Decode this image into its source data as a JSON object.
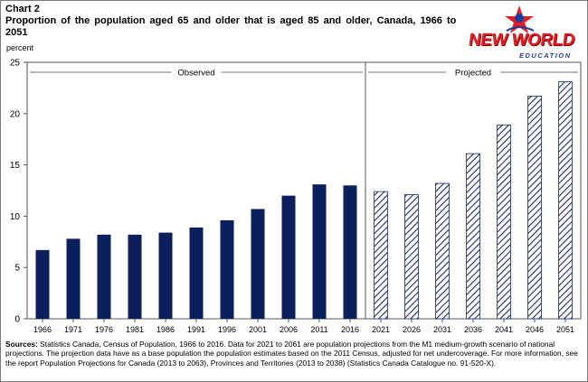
{
  "chart_label": "Chart 2",
  "title": "Proportion of the population aged 65 and older that is aged 85 and older, Canada, 1966 to 2051",
  "logo": {
    "main": "NEW WORLD",
    "sub": "EDUCATION"
  },
  "source": {
    "label": "Sources:",
    "text": " Statistics Canada, Census of Population, 1966 to 2016. Data for 2021 to 2061 are population projections from the M1 medium-growth scenario of national projections. The projection data have as a base population the population estimates based on the 2011 Census, adjusted for net undercoverage. For more information, see the report Population Projections for Canada (2013 to 2063), Provinces and Territories (2013 to 2038) (Statistics Canada Catalogue no. 91-520-X)."
  },
  "colors": {
    "observed": "#0b1f5c",
    "projected_stroke": "#1b2a6b",
    "axis": "#555555"
  },
  "chart_data": {
    "type": "bar",
    "title": "Proportion of the population aged 65 and older that is aged 85 and older, Canada, 1966 to 2051",
    "ylabel": "percent",
    "xlabel": "",
    "ylim": [
      0,
      25
    ],
    "yticks": [
      0,
      5,
      10,
      15,
      20,
      25
    ],
    "grid": false,
    "categories": [
      "1966",
      "1971",
      "1976",
      "1981",
      "1986",
      "1991",
      "1996",
      "2001",
      "2006",
      "2011",
      "2016",
      "2021",
      "2026",
      "2031",
      "2036",
      "2041",
      "2046",
      "2051"
    ],
    "series": [
      {
        "name": "Observed",
        "style": "solid",
        "values": [
          6.7,
          7.8,
          8.2,
          8.2,
          8.4,
          8.9,
          9.6,
          10.7,
          12.0,
          13.1,
          13.0,
          null,
          null,
          null,
          null,
          null,
          null,
          null
        ]
      },
      {
        "name": "Projected",
        "style": "hatched",
        "values": [
          null,
          null,
          null,
          null,
          null,
          null,
          null,
          null,
          null,
          null,
          null,
          12.4,
          12.1,
          13.2,
          16.1,
          18.9,
          21.7,
          23.1
        ]
      }
    ],
    "annotations": [
      "Observed",
      "Projected"
    ]
  }
}
